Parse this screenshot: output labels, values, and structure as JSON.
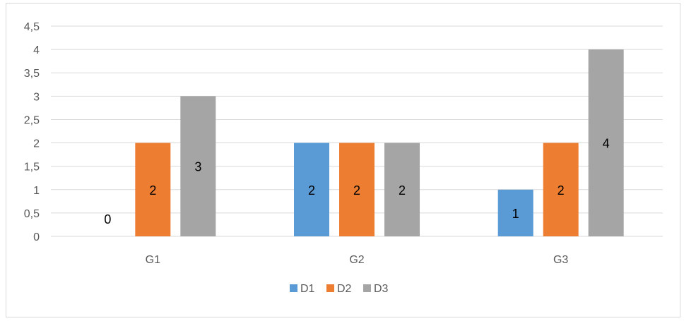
{
  "chart_data": {
    "type": "bar",
    "categories": [
      "G1",
      "G2",
      "G3"
    ],
    "series": [
      {
        "name": "D1",
        "values": [
          0,
          2,
          1
        ],
        "color": "#5b9bd5"
      },
      {
        "name": "D2",
        "values": [
          2,
          2,
          2
        ],
        "color": "#ed7d31"
      },
      {
        "name": "D3",
        "values": [
          3,
          2,
          4
        ],
        "color": "#a5a5a5"
      }
    ],
    "y_ticks": [
      "0",
      "0,5",
      "1",
      "1,5",
      "2",
      "2,5",
      "3",
      "3,5",
      "4",
      "4,5"
    ],
    "ylim": [
      0,
      4.5
    ],
    "grid": true,
    "legend_position": "bottom",
    "data_labels": true
  }
}
